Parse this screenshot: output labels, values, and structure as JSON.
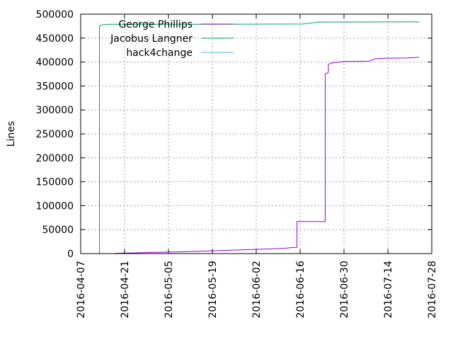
{
  "chart_data": {
    "type": "line",
    "title": "",
    "xlabel": "",
    "ylabel": "Lines",
    "grid": true,
    "legend_position": "top-left",
    "xlim": [
      "2016-04-07",
      "2016-07-28"
    ],
    "ylim": [
      0,
      500000
    ],
    "x_ticks": [
      "2016-04-07",
      "2016-04-21",
      "2016-05-05",
      "2016-05-19",
      "2016-06-02",
      "2016-06-16",
      "2016-06-30",
      "2016-07-14",
      "2016-07-28"
    ],
    "y_ticks": [
      0,
      50000,
      100000,
      150000,
      200000,
      250000,
      300000,
      350000,
      400000,
      450000,
      500000
    ],
    "y_tick_labels": [
      "0",
      "50000",
      "100000",
      "150000",
      "200000",
      "250000",
      "300000",
      "350000",
      "400000",
      "450000",
      "500000"
    ],
    "series": [
      {
        "name": "George Phillips",
        "color": "#9400d3",
        "points": [
          [
            "2016-04-18",
            0
          ],
          [
            "2016-04-18",
            500
          ],
          [
            "2016-04-25",
            1500
          ],
          [
            "2016-05-01",
            2500
          ],
          [
            "2016-05-08",
            3500
          ],
          [
            "2016-05-15",
            5000
          ],
          [
            "2016-05-22",
            6500
          ],
          [
            "2016-05-29",
            8000
          ],
          [
            "2016-06-05",
            9500
          ],
          [
            "2016-06-11",
            11000
          ],
          [
            "2016-06-14",
            13000
          ],
          [
            "2016-06-15",
            13000
          ],
          [
            "2016-06-15",
            67000
          ],
          [
            "2016-06-24",
            67000
          ],
          [
            "2016-06-24",
            375000
          ],
          [
            "2016-06-25",
            378000
          ],
          [
            "2016-06-25",
            395000
          ],
          [
            "2016-06-26",
            398000
          ],
          [
            "2016-06-30",
            401000
          ],
          [
            "2016-07-08",
            402000
          ],
          [
            "2016-07-10",
            407000
          ],
          [
            "2016-07-13",
            408000
          ],
          [
            "2016-07-20",
            408500
          ],
          [
            "2016-07-24",
            410000
          ]
        ]
      },
      {
        "name": "Jacobus Langner",
        "color": "#009e73",
        "points": [
          [
            "2016-04-13",
            0
          ],
          [
            "2016-04-13",
            475000
          ],
          [
            "2016-04-14",
            478000
          ],
          [
            "2016-04-16",
            479000
          ],
          [
            "2016-05-20",
            479000
          ],
          [
            "2016-06-17",
            479500
          ],
          [
            "2016-06-20",
            482000
          ],
          [
            "2016-06-22",
            483500
          ],
          [
            "2016-07-24",
            484000
          ]
        ]
      },
      {
        "name": "hack4change",
        "color": "#56b4e9",
        "points": []
      }
    ]
  }
}
